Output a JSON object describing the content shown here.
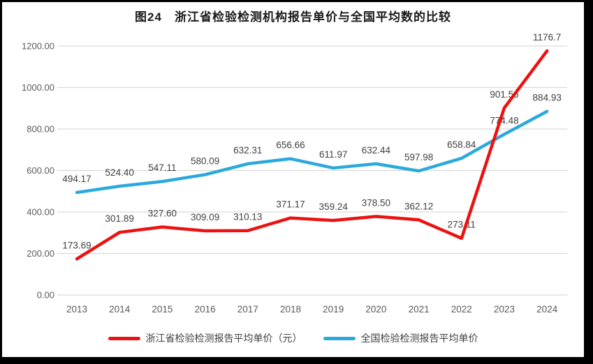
{
  "chart_data": {
    "type": "line",
    "title": "图24　浙江省检验检测机构报告单价与全国平均数的比较",
    "categories": [
      "2013",
      "2014",
      "2015",
      "2016",
      "2017",
      "2018",
      "2019",
      "2020",
      "2021",
      "2022",
      "2023",
      "2024"
    ],
    "series": [
      {
        "name": "浙江省检验检测报告平均单价（元）",
        "color": "#ED1111",
        "values": [
          173.69,
          301.89,
          327.6,
          309.09,
          310.13,
          371.17,
          359.24,
          378.5,
          362.12,
          273.11,
          901.56,
          1176.7
        ],
        "labels": [
          "173.69",
          "301.89",
          "327.60",
          "309.09",
          "310.13",
          "371.17",
          "359.24",
          "378.50",
          "362.12",
          "273.11",
          "901.56",
          "1176.7"
        ]
      },
      {
        "name": "全国检验检测报告平均单价",
        "color": "#2BA9DC",
        "values": [
          494.17,
          524.4,
          547.11,
          580.09,
          632.31,
          656.66,
          611.97,
          632.44,
          597.98,
          658.84,
          774.48,
          884.93
        ],
        "labels": [
          "494.17",
          "524.40",
          "547.11",
          "580.09",
          "632.31",
          "656.66",
          "611.97",
          "632.44",
          "597.98",
          "658.84",
          "774.48",
          "884.93"
        ]
      }
    ],
    "xlabel": "",
    "ylabel": "",
    "ylim": [
      0,
      1200
    ],
    "ytick_step": 200,
    "ytick_labels": [
      "0.00",
      "200.00",
      "400.00",
      "600.00",
      "800.00",
      "1000.00",
      "1200.00"
    ],
    "grid": true,
    "legend_position": "bottom",
    "colors": {
      "gridline": "#D9D9D9",
      "axis_text": "#595959",
      "data_label": "#404040",
      "title_text": "#1A1A1A",
      "frame_border": "#000000",
      "background": "#FFFFFF"
    }
  }
}
